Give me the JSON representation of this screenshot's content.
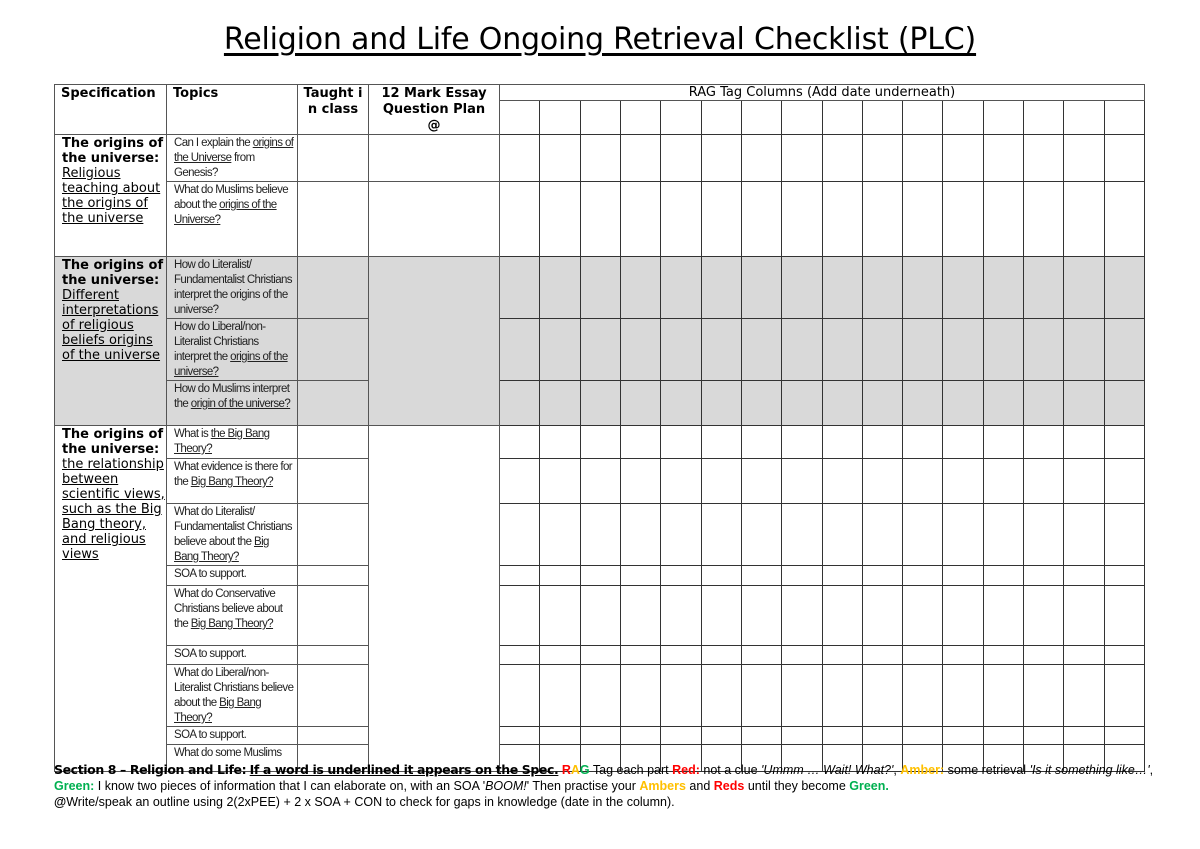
{
  "document": {
    "title": "Religion and Life Ongoing Retrieval Checklist (PLC)"
  },
  "table": {
    "headers": {
      "specification": "Specification",
      "topics": "Topics",
      "taught": "Taught in class",
      "essay_plan": "12 Mark Essay Question Plan @",
      "rag_title": "RAG Tag Columns (Add date underneath)"
    },
    "rag_column_count": 16,
    "groups": [
      {
        "shaded": false,
        "spec_bold": "The origins of the universe:",
        "spec_underlined": "Religious teaching about the origins of the universe",
        "essay_plan_merged": false,
        "rows": [
          {
            "pre": "Can I explain the ",
            "u": "origins of the Universe",
            "post": " from Genesis?"
          },
          {
            "pre": "What do Muslims believe about the ",
            "u": "origins of the Universe?",
            "post": ""
          }
        ]
      },
      {
        "shaded": true,
        "spec_bold": "The origins of the universe:",
        "spec_underlined": "Different interpretations of religious beliefs origins of the universe",
        "essay_plan_merged": true,
        "rows": [
          {
            "pre": "How do Literalist/ Fundamentalist Christians interpret the origins of the universe?",
            "u": "",
            "post": ""
          },
          {
            "pre": "How do Liberal/non-Literalist Christians interpret the ",
            "u": "origins of the universe?",
            "post": ""
          },
          {
            "pre": "How do Muslims interpret the ",
            "u": "origin of the universe?",
            "post": ""
          }
        ]
      },
      {
        "shaded": false,
        "spec_bold": "The origins of the universe:",
        "spec_underlined": "the relationship between scientific views, such as the Big Bang theory, and religious views",
        "essay_plan_merged": true,
        "rows": [
          {
            "pre": "What is ",
            "u": "the Big Bang Theory?",
            "post": ""
          },
          {
            "pre": "What evidence is there for the ",
            "u": "Big Bang Theory?",
            "post": ""
          },
          {
            "pre": "What do Literalist/ Fundamentalist Christians believe about the ",
            "u": "Big Bang Theory?",
            "post": ""
          },
          {
            "pre": "SOA to support.",
            "u": "",
            "post": ""
          },
          {
            "pre": "What do Conservative Christians believe about the ",
            "u": "Big Bang Theory?",
            "post": ""
          },
          {
            "pre": "SOA to support.",
            "u": "",
            "post": ""
          },
          {
            "pre": "What do Liberal/non-Literalist Christians believe about the ",
            "u": "Big Bang Theory?",
            "post": ""
          },
          {
            "pre": "SOA to support.",
            "u": "",
            "post": ""
          },
          {
            "pre": "What do some Muslims",
            "u": "",
            "post": ""
          }
        ]
      }
    ]
  },
  "footer": {
    "section_label": "Section 8 – Religion and Life:",
    "spec_note": "If a word is underlined it appears on the Spec.",
    "rag_r": "R",
    "rag_a": "A",
    "rag_g": "G",
    "tag_each": " Tag each part ",
    "red_label": "Red:",
    "red_text": " not a clue ",
    "red_quote": "'Ummm … Wait! What?'",
    "comma1": ", ",
    "amber_label": "Amber:",
    "amber_text": " some retrieval ",
    "amber_quote": "'Is it something like…'",
    "comma2": ", ",
    "green_label": "Green:",
    "green_text": " I know two pieces of information that I can elaborate on, with an SOA '",
    "green_quote": "BOOM!",
    "green_close": "' Then practise your ",
    "ambers": "Ambers",
    "and": " and ",
    "reds": "Reds",
    "until": " until they become ",
    "green_end": "Green.",
    "at_symbol": "@",
    "outline_text": "Write/speak an outline using 2(2xPEE) + 2 x SOA + CON to check for gaps in knowledge (date in the column)."
  },
  "colors": {
    "red": "#ff0000",
    "amber": "#ffc000",
    "green": "#00b050",
    "shaded_row": "#d9d9d9"
  }
}
